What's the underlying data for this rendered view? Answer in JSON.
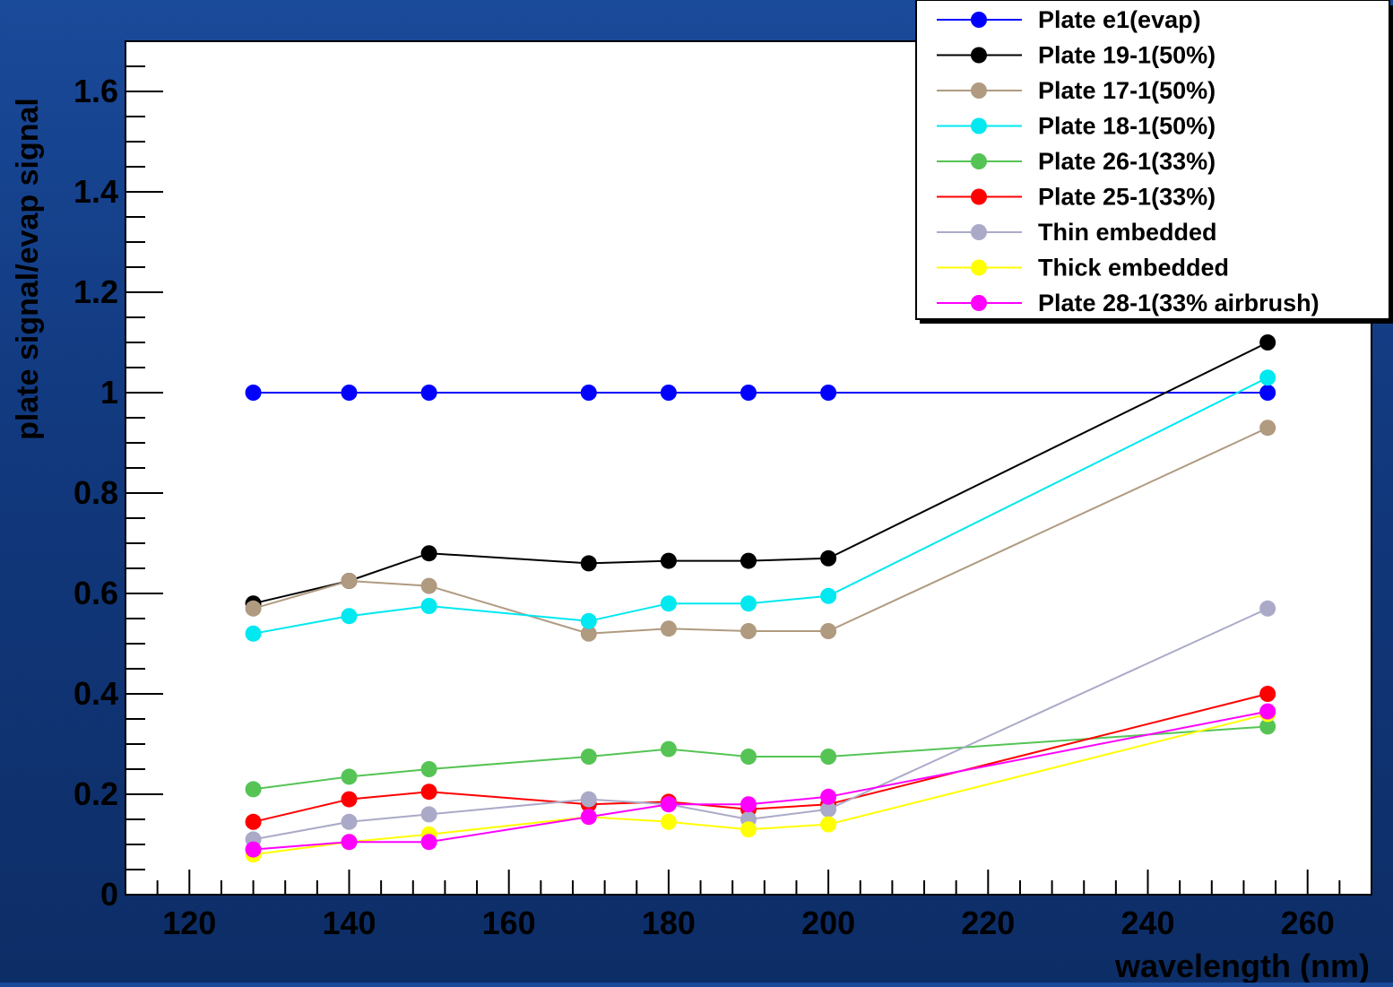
{
  "chart_data": {
    "type": "line",
    "title": "",
    "xlabel": "wavelength (nm)",
    "ylabel": "plate signal/evap signal",
    "xlim": [
      112,
      268
    ],
    "ylim": [
      0,
      1.7
    ],
    "xticks": [
      120,
      140,
      160,
      180,
      200,
      220,
      240,
      260
    ],
    "xtick_labels": [
      "120",
      "140",
      "160",
      "180",
      "200",
      "220",
      "240",
      "260"
    ],
    "yticks": [
      0,
      0.2,
      0.4,
      0.6,
      0.8,
      1,
      1.2,
      1.4,
      1.6
    ],
    "ytick_labels": [
      "0",
      "0.2",
      "0.4",
      "0.6",
      "0.8",
      "1",
      "1.2",
      "1.4",
      "1.6"
    ],
    "grid": false,
    "legend_position": "top-right",
    "x": [
      128,
      140,
      150,
      170,
      180,
      190,
      200,
      255
    ],
    "series": [
      {
        "name": "Plate e1(evap)",
        "color": "#0000ff",
        "values": [
          1.0,
          1.0,
          1.0,
          1.0,
          1.0,
          1.0,
          1.0,
          1.0
        ]
      },
      {
        "name": "Plate 19-1(50%)",
        "color": "#000000",
        "values": [
          0.58,
          0.625,
          0.68,
          0.66,
          0.665,
          0.665,
          0.67,
          1.1
        ]
      },
      {
        "name": "Plate 17-1(50%)",
        "color": "#b09a80",
        "values": [
          0.57,
          0.625,
          0.615,
          0.52,
          0.53,
          0.525,
          0.525,
          0.93
        ]
      },
      {
        "name": "Plate 18-1(50%)",
        "color": "#00e8f0",
        "values": [
          0.52,
          0.555,
          0.575,
          0.545,
          0.58,
          0.58,
          0.595,
          1.03
        ]
      },
      {
        "name": "Plate 26-1(33%)",
        "color": "#55c455",
        "values": [
          0.21,
          0.235,
          0.25,
          0.275,
          0.29,
          0.275,
          0.275,
          0.335
        ]
      },
      {
        "name": "Plate 25-1(33%)",
        "color": "#ff0000",
        "values": [
          0.145,
          0.19,
          0.205,
          0.18,
          0.185,
          0.17,
          0.18,
          0.4
        ]
      },
      {
        "name": "Thin embedded",
        "color": "#aaaac8",
        "values": [
          0.11,
          0.145,
          0.16,
          0.19,
          0.18,
          0.15,
          0.17,
          0.57
        ]
      },
      {
        "name": "Thick embedded",
        "color": "#ffff00",
        "values": [
          0.08,
          0.105,
          0.12,
          0.155,
          0.145,
          0.13,
          0.14,
          0.36
        ]
      },
      {
        "name": "Plate 28-1(33% airbrush)",
        "color": "#ff00ff",
        "values": [
          0.09,
          0.105,
          0.105,
          0.155,
          0.18,
          0.18,
          0.195,
          0.365
        ]
      }
    ]
  }
}
